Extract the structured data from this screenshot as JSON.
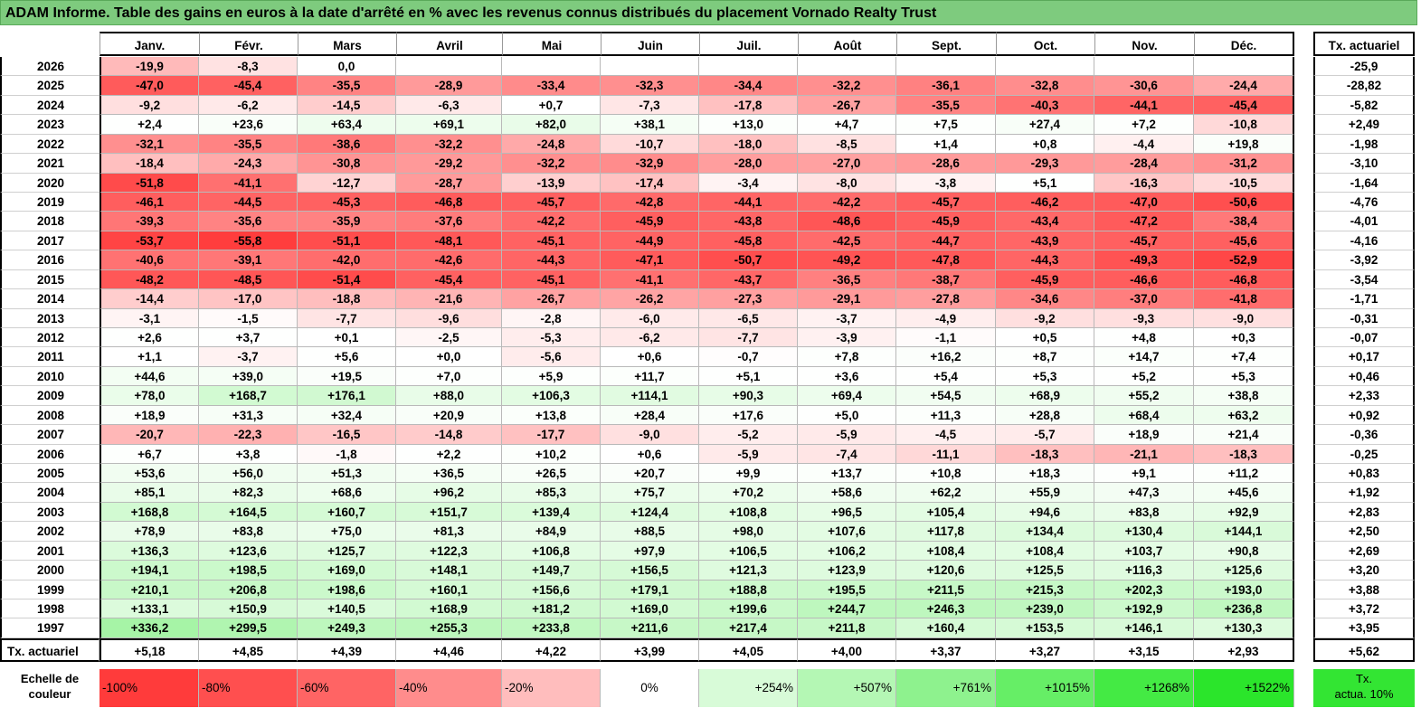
{
  "title": "ADAM Informe. Table des gains en euros à la date d'arrêté en % avec les revenus connus distribués du placement Vornado Realty Trust",
  "chart_data": {
    "type": "table",
    "columns": [
      "Janv.",
      "Févr.",
      "Mars",
      "Avril",
      "Mai",
      "Juin",
      "Juil.",
      "Août",
      "Sept.",
      "Oct.",
      "Nov.",
      "Déc."
    ],
    "actuarial_header": "Tx. actuariel",
    "rows": [
      {
        "year": "2026",
        "values": [
          "-19,9",
          "-8,3",
          "0,0",
          "",
          "",
          "",
          "",
          "",
          "",
          "",
          "",
          ""
        ],
        "actuarial": "-25,9"
      },
      {
        "year": "2025",
        "values": [
          "-47,0",
          "-45,4",
          "-35,5",
          "-28,9",
          "-33,4",
          "-32,3",
          "-34,4",
          "-32,2",
          "-36,1",
          "-32,8",
          "-30,6",
          "-24,4"
        ],
        "actuarial": "-28,82"
      },
      {
        "year": "2024",
        "values": [
          "-9,2",
          "-6,2",
          "-14,5",
          "-6,3",
          "+0,7",
          "-7,3",
          "-17,8",
          "-26,7",
          "-35,5",
          "-40,3",
          "-44,1",
          "-45,4"
        ],
        "actuarial": "-5,82"
      },
      {
        "year": "2023",
        "values": [
          "+2,4",
          "+23,6",
          "+63,4",
          "+69,1",
          "+82,0",
          "+38,1",
          "+13,0",
          "+4,7",
          "+7,5",
          "+27,4",
          "+7,2",
          "-10,8"
        ],
        "actuarial": "+2,49"
      },
      {
        "year": "2022",
        "values": [
          "-32,1",
          "-35,5",
          "-38,6",
          "-32,2",
          "-24,8",
          "-10,7",
          "-18,0",
          "-8,5",
          "+1,4",
          "+0,8",
          "-4,4",
          "+19,8"
        ],
        "actuarial": "-1,98"
      },
      {
        "year": "2021",
        "values": [
          "-18,4",
          "-24,3",
          "-30,8",
          "-29,2",
          "-32,2",
          "-32,9",
          "-28,0",
          "-27,0",
          "-28,6",
          "-29,3",
          "-28,4",
          "-31,2"
        ],
        "actuarial": "-3,10"
      },
      {
        "year": "2020",
        "values": [
          "-51,8",
          "-41,1",
          "-12,7",
          "-28,7",
          "-13,9",
          "-17,4",
          "-3,4",
          "-8,0",
          "-3,8",
          "+5,1",
          "-16,3",
          "-10,5"
        ],
        "actuarial": "-1,64"
      },
      {
        "year": "2019",
        "values": [
          "-46,1",
          "-44,5",
          "-45,3",
          "-46,8",
          "-45,7",
          "-42,8",
          "-44,1",
          "-42,2",
          "-45,7",
          "-46,2",
          "-47,0",
          "-50,6"
        ],
        "actuarial": "-4,76"
      },
      {
        "year": "2018",
        "values": [
          "-39,3",
          "-35,6",
          "-35,9",
          "-37,6",
          "-42,2",
          "-45,9",
          "-43,8",
          "-48,6",
          "-45,9",
          "-43,4",
          "-47,2",
          "-38,4"
        ],
        "actuarial": "-4,01"
      },
      {
        "year": "2017",
        "values": [
          "-53,7",
          "-55,8",
          "-51,1",
          "-48,1",
          "-45,1",
          "-44,9",
          "-45,8",
          "-42,5",
          "-44,7",
          "-43,9",
          "-45,7",
          "-45,6"
        ],
        "actuarial": "-4,16"
      },
      {
        "year": "2016",
        "values": [
          "-40,6",
          "-39,1",
          "-42,0",
          "-42,6",
          "-44,3",
          "-47,1",
          "-50,7",
          "-49,2",
          "-47,8",
          "-44,3",
          "-49,3",
          "-52,9"
        ],
        "actuarial": "-3,92"
      },
      {
        "year": "2015",
        "values": [
          "-48,2",
          "-48,5",
          "-51,4",
          "-45,4",
          "-45,1",
          "-41,1",
          "-43,7",
          "-36,5",
          "-38,7",
          "-45,9",
          "-46,6",
          "-46,8"
        ],
        "actuarial": "-3,54"
      },
      {
        "year": "2014",
        "values": [
          "-14,4",
          "-17,0",
          "-18,8",
          "-21,6",
          "-26,7",
          "-26,2",
          "-27,3",
          "-29,1",
          "-27,8",
          "-34,6",
          "-37,0",
          "-41,8"
        ],
        "actuarial": "-1,71"
      },
      {
        "year": "2013",
        "values": [
          "-3,1",
          "-1,5",
          "-7,7",
          "-9,6",
          "-2,8",
          "-6,0",
          "-6,5",
          "-3,7",
          "-4,9",
          "-9,2",
          "-9,3",
          "-9,0"
        ],
        "actuarial": "-0,31"
      },
      {
        "year": "2012",
        "values": [
          "+2,6",
          "+3,7",
          "+0,1",
          "-2,5",
          "-5,3",
          "-6,2",
          "-7,7",
          "-3,9",
          "-1,1",
          "+0,5",
          "+4,8",
          "+0,3"
        ],
        "actuarial": "-0,07"
      },
      {
        "year": "2011",
        "values": [
          "+1,1",
          "-3,7",
          "+5,6",
          "+0,0",
          "-5,6",
          "+0,6",
          "-0,7",
          "+7,8",
          "+16,2",
          "+8,7",
          "+14,7",
          "+7,4"
        ],
        "actuarial": "+0,17"
      },
      {
        "year": "2010",
        "values": [
          "+44,6",
          "+39,0",
          "+19,5",
          "+7,0",
          "+5,9",
          "+11,7",
          "+5,1",
          "+3,6",
          "+5,4",
          "+5,3",
          "+5,2",
          "+5,3"
        ],
        "actuarial": "+0,46"
      },
      {
        "year": "2009",
        "values": [
          "+78,0",
          "+168,7",
          "+176,1",
          "+88,0",
          "+106,3",
          "+114,1",
          "+90,3",
          "+69,4",
          "+54,5",
          "+68,9",
          "+55,2",
          "+38,8"
        ],
        "actuarial": "+2,33"
      },
      {
        "year": "2008",
        "values": [
          "+18,9",
          "+31,3",
          "+32,4",
          "+20,9",
          "+13,8",
          "+28,4",
          "+17,6",
          "+5,0",
          "+11,3",
          "+28,8",
          "+68,4",
          "+63,2"
        ],
        "actuarial": "+0,92"
      },
      {
        "year": "2007",
        "values": [
          "-20,7",
          "-22,3",
          "-16,5",
          "-14,8",
          "-17,7",
          "-9,0",
          "-5,2",
          "-5,9",
          "-4,5",
          "-5,7",
          "+18,9",
          "+21,4"
        ],
        "actuarial": "-0,36"
      },
      {
        "year": "2006",
        "values": [
          "+6,7",
          "+3,8",
          "-1,8",
          "+2,2",
          "+10,2",
          "+0,6",
          "-5,9",
          "-7,4",
          "-11,1",
          "-18,3",
          "-21,1",
          "-18,3"
        ],
        "actuarial": "-0,25"
      },
      {
        "year": "2005",
        "values": [
          "+53,6",
          "+56,0",
          "+51,3",
          "+36,5",
          "+26,5",
          "+20,7",
          "+9,9",
          "+13,7",
          "+10,8",
          "+18,3",
          "+9,1",
          "+11,2"
        ],
        "actuarial": "+0,83"
      },
      {
        "year": "2004",
        "values": [
          "+85,1",
          "+82,3",
          "+68,6",
          "+96,2",
          "+85,3",
          "+75,7",
          "+70,2",
          "+58,6",
          "+62,2",
          "+55,9",
          "+47,3",
          "+45,6"
        ],
        "actuarial": "+1,92"
      },
      {
        "year": "2003",
        "values": [
          "+168,8",
          "+164,5",
          "+160,7",
          "+151,7",
          "+139,4",
          "+124,4",
          "+108,8",
          "+96,5",
          "+105,4",
          "+94,6",
          "+83,8",
          "+92,9"
        ],
        "actuarial": "+2,83"
      },
      {
        "year": "2002",
        "values": [
          "+78,9",
          "+83,8",
          "+75,0",
          "+81,3",
          "+84,9",
          "+88,5",
          "+98,0",
          "+107,6",
          "+117,8",
          "+134,4",
          "+130,4",
          "+144,1"
        ],
        "actuarial": "+2,50"
      },
      {
        "year": "2001",
        "values": [
          "+136,3",
          "+123,6",
          "+125,7",
          "+122,3",
          "+106,8",
          "+97,9",
          "+106,5",
          "+106,2",
          "+108,4",
          "+108,4",
          "+103,7",
          "+90,8"
        ],
        "actuarial": "+2,69"
      },
      {
        "year": "2000",
        "values": [
          "+194,1",
          "+198,5",
          "+169,0",
          "+148,1",
          "+149,7",
          "+156,5",
          "+121,3",
          "+123,9",
          "+120,6",
          "+125,5",
          "+116,3",
          "+125,6"
        ],
        "actuarial": "+3,20"
      },
      {
        "year": "1999",
        "values": [
          "+210,1",
          "+206,8",
          "+198,6",
          "+160,1",
          "+156,6",
          "+179,1",
          "+188,8",
          "+195,5",
          "+211,5",
          "+215,3",
          "+202,3",
          "+193,0"
        ],
        "actuarial": "+3,88"
      },
      {
        "year": "1998",
        "values": [
          "+133,1",
          "+150,9",
          "+140,5",
          "+168,9",
          "+181,2",
          "+169,0",
          "+199,6",
          "+244,7",
          "+246,3",
          "+239,0",
          "+192,9",
          "+236,8"
        ],
        "actuarial": "+3,72"
      },
      {
        "year": "1997",
        "values": [
          "+336,2",
          "+299,5",
          "+249,3",
          "+255,3",
          "+233,8",
          "+211,6",
          "+217,4",
          "+211,8",
          "+160,4",
          "+153,5",
          "+146,1",
          "+130,3"
        ],
        "actuarial": "+3,95"
      }
    ],
    "footer": {
      "label": "Tx. actuariel",
      "values": [
        "+5,18",
        "+4,85",
        "+4,39",
        "+4,46",
        "+4,22",
        "+3,99",
        "+4,05",
        "+4,00",
        "+3,37",
        "+3,27",
        "+3,15",
        "+2,93"
      ],
      "actuarial": "+5,62"
    },
    "scale": {
      "label_line1": "Echelle de",
      "label_line2": "couleur",
      "items": [
        {
          "text": "-100%",
          "color": "#ff3b3b"
        },
        {
          "text": "-80%",
          "color": "#ff4f4f"
        },
        {
          "text": "-60%",
          "color": "#ff6464"
        },
        {
          "text": "-40%",
          "color": "#ff8c8c"
        },
        {
          "text": "-20%",
          "color": "#ffbdbd"
        },
        {
          "text": "0%",
          "color": "#ffffff"
        },
        {
          "text": "+254%",
          "color": "#d8fbd8"
        },
        {
          "text": "+507%",
          "color": "#b4f7b4"
        },
        {
          "text": "+761%",
          "color": "#8ef28e"
        },
        {
          "text": "+1015%",
          "color": "#66ee66"
        },
        {
          "text": "+1268%",
          "color": "#44ea44"
        },
        {
          "text": "+1522%",
          "color": "#2be52b"
        }
      ],
      "actua_line1": "Tx.",
      "actua_line2": "actua. 10%",
      "actua_color": "#33e533"
    }
  }
}
